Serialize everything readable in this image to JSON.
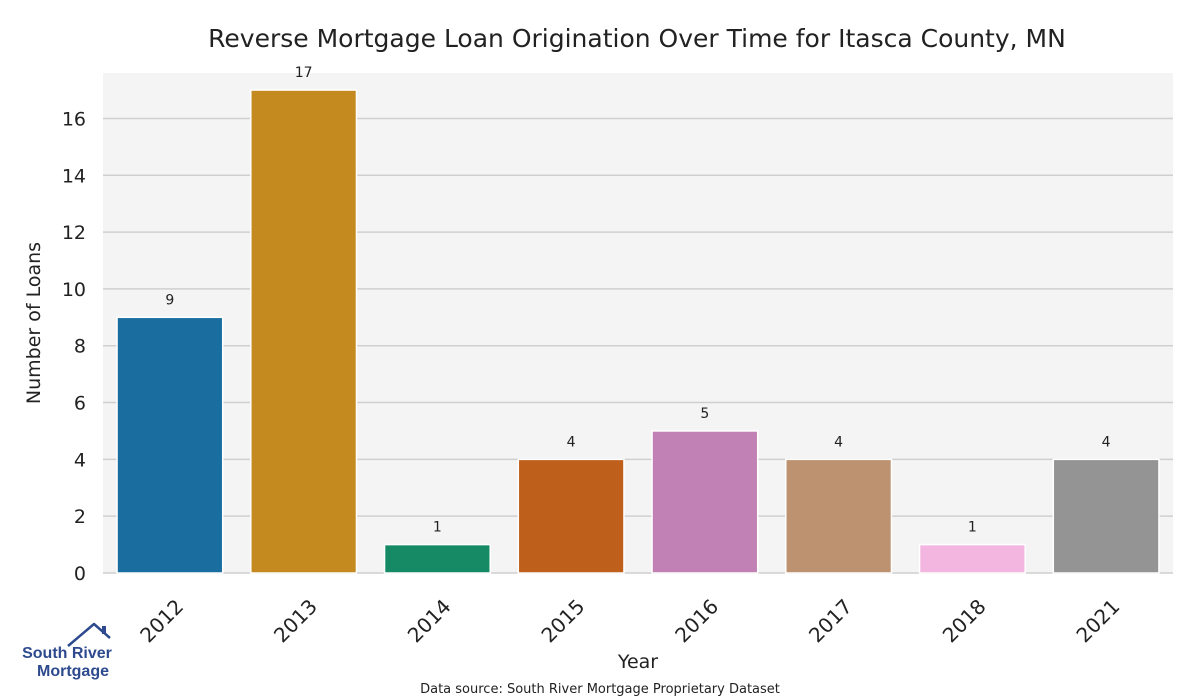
{
  "chart_data": {
    "type": "bar",
    "title": "Reverse Mortgage Loan Origination Over Time for Itasca County, MN",
    "xlabel": "Year",
    "ylabel": "Number of Loans",
    "categories": [
      "2012",
      "2013",
      "2014",
      "2015",
      "2016",
      "2017",
      "2018",
      "2021"
    ],
    "values": [
      9,
      17,
      1,
      4,
      5,
      4,
      1,
      4
    ],
    "colors": [
      "#1a6e9f",
      "#c48a20",
      "#168a65",
      "#bf5f1c",
      "#c181b4",
      "#bc9270",
      "#f2b6e0",
      "#949494"
    ],
    "ylim": [
      0,
      17.6
    ],
    "yticks": [
      0,
      2,
      4,
      6,
      8,
      10,
      12,
      14,
      16
    ],
    "grid": true,
    "legend": "none",
    "plot_background": "#f4f4f4"
  },
  "footer": {
    "source": "Data source: South River Mortgage Proprietary Dataset"
  },
  "logo": {
    "line1": "South River",
    "line2": "Mortgage",
    "color": "#2e4a8e"
  }
}
